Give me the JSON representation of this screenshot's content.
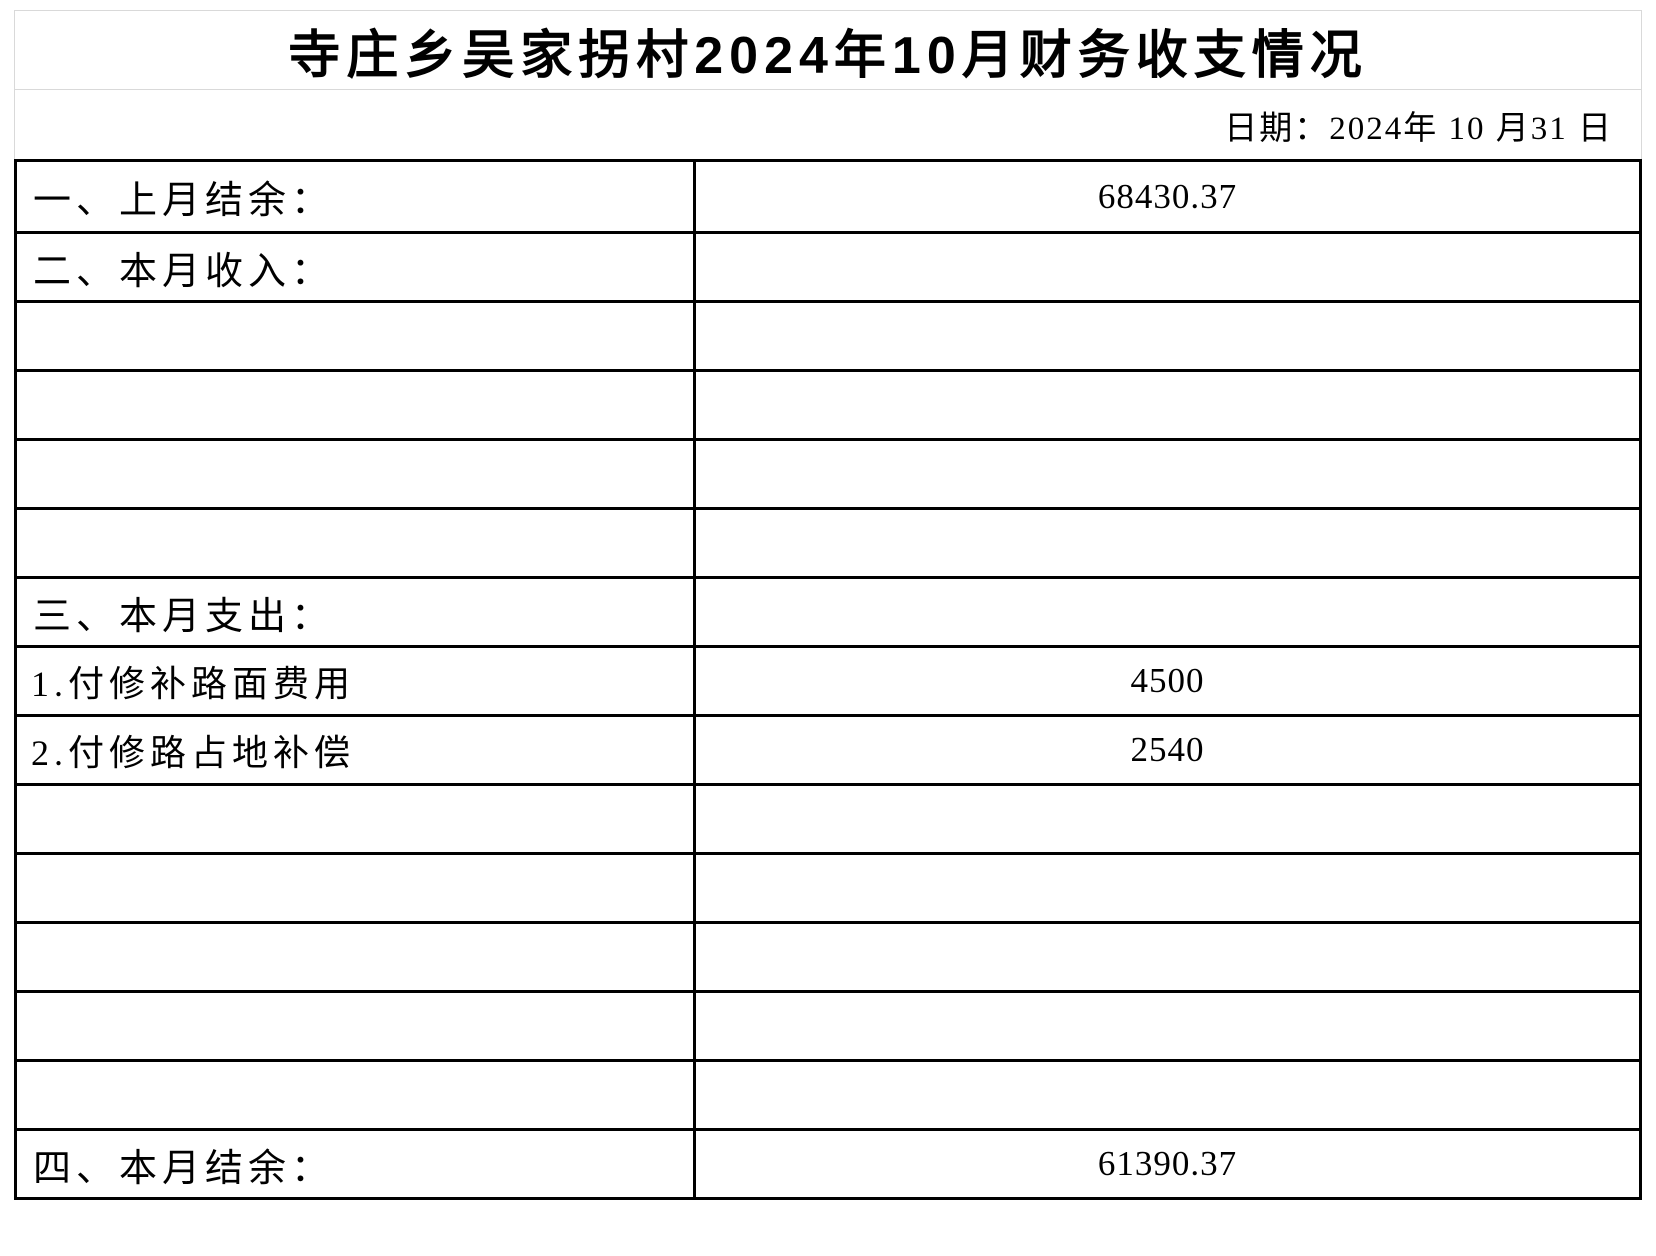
{
  "header": {
    "title": "寺庄乡吴家拐村2024年10月财务收支情况",
    "date_label": "日期：2024年 10 月31 日"
  },
  "table": {
    "rows": [
      {
        "label": "一、上月结余：",
        "value": "68430.37"
      },
      {
        "label": "二、本月收入：",
        "value": ""
      },
      {
        "label": "",
        "value": ""
      },
      {
        "label": "",
        "value": ""
      },
      {
        "label": "",
        "value": ""
      },
      {
        "label": "",
        "value": ""
      },
      {
        "label": "三、本月支出：",
        "value": ""
      },
      {
        "label": "1.付修补路面费用",
        "value": "4500"
      },
      {
        "label": "2.付修路占地补偿",
        "value": "2540"
      },
      {
        "label": "",
        "value": ""
      },
      {
        "label": "",
        "value": ""
      },
      {
        "label": "",
        "value": ""
      },
      {
        "label": "",
        "value": ""
      },
      {
        "label": "",
        "value": ""
      },
      {
        "label": "四、本月结余：",
        "value": "61390.37"
      }
    ],
    "summary": {
      "prev_month_balance": "68430.37",
      "expense_item_1": "4500",
      "expense_item_2": "2540",
      "current_month_balance": "61390.37"
    }
  },
  "colors": {
    "border_black": "#000000",
    "grid_gray": "#d9d9d9",
    "text": "#000000",
    "background": "#ffffff"
  }
}
